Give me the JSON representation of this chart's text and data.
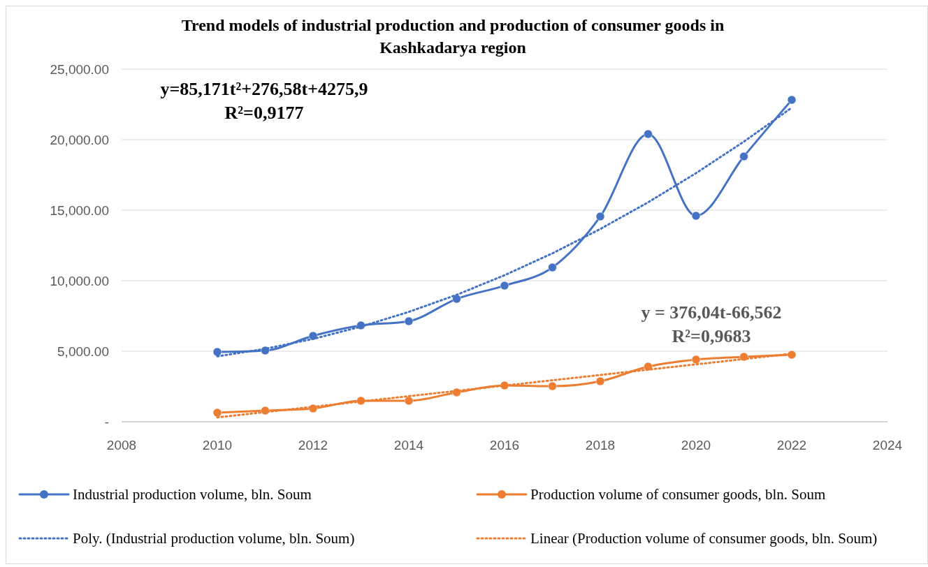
{
  "chart_data": {
    "type": "line",
    "title": "Trend models of industrial production and production of consumer goods in Kashkadarya region",
    "x": [
      2010,
      2011,
      2012,
      2013,
      2014,
      2015,
      2016,
      2017,
      2018,
      2019,
      2020,
      2021,
      2022
    ],
    "xlim": [
      2008,
      2024
    ],
    "xticks": [
      2008,
      2010,
      2012,
      2014,
      2016,
      2018,
      2020,
      2022,
      2024
    ],
    "ylim": [
      0,
      25000
    ],
    "yticks": [
      {
        "value": 0,
        "label": "-"
      },
      {
        "value": 5000,
        "label": "5,000.00"
      },
      {
        "value": 10000,
        "label": "10,000.00"
      },
      {
        "value": 15000,
        "label": "15,000.00"
      },
      {
        "value": 20000,
        "label": "20,000.00"
      },
      {
        "value": 25000,
        "label": "25,000.00"
      }
    ],
    "grid": "y",
    "legend": "bottom",
    "series": [
      {
        "name": "Industrial production volume, bln. Soum",
        "color": "#4472c4",
        "marker": "circle",
        "line_style": "solid",
        "values": [
          4950,
          5050,
          6090,
          6830,
          7130,
          8710,
          9650,
          10940,
          14550,
          20400,
          14600,
          18810,
          22820
        ]
      },
      {
        "name": "Production volume of consumer goods, bln. Soum",
        "color": "#ed7d31",
        "marker": "circle",
        "line_style": "solid",
        "values": [
          640,
          790,
          940,
          1490,
          1490,
          2080,
          2570,
          2520,
          2870,
          3910,
          4410,
          4600,
          4750
        ]
      },
      {
        "name": "Poly. (Industrial production volume, bln. Soum)",
        "color": "#4472c4",
        "marker": "none",
        "line_style": "dotted",
        "values": [
          4638,
          5170,
          5872,
          6745,
          7788,
          9002,
          10385,
          11940,
          13664,
          15559,
          17624,
          19860,
          22265
        ]
      },
      {
        "name": "Linear (Production volume of consumer goods, bln. Soum)",
        "color": "#ed7d31",
        "marker": "none",
        "line_style": "dotted",
        "values": [
          310,
          686,
          1062,
          1438,
          1814,
          2190,
          2566,
          2942,
          3318,
          3694,
          4070,
          4446,
          4821
        ]
      }
    ],
    "annotations": [
      "y=85,171t²+276,58t+4275,9",
      "R²=0,9177",
      "y = 376,04t-66,562",
      "R²=0,9683"
    ]
  }
}
